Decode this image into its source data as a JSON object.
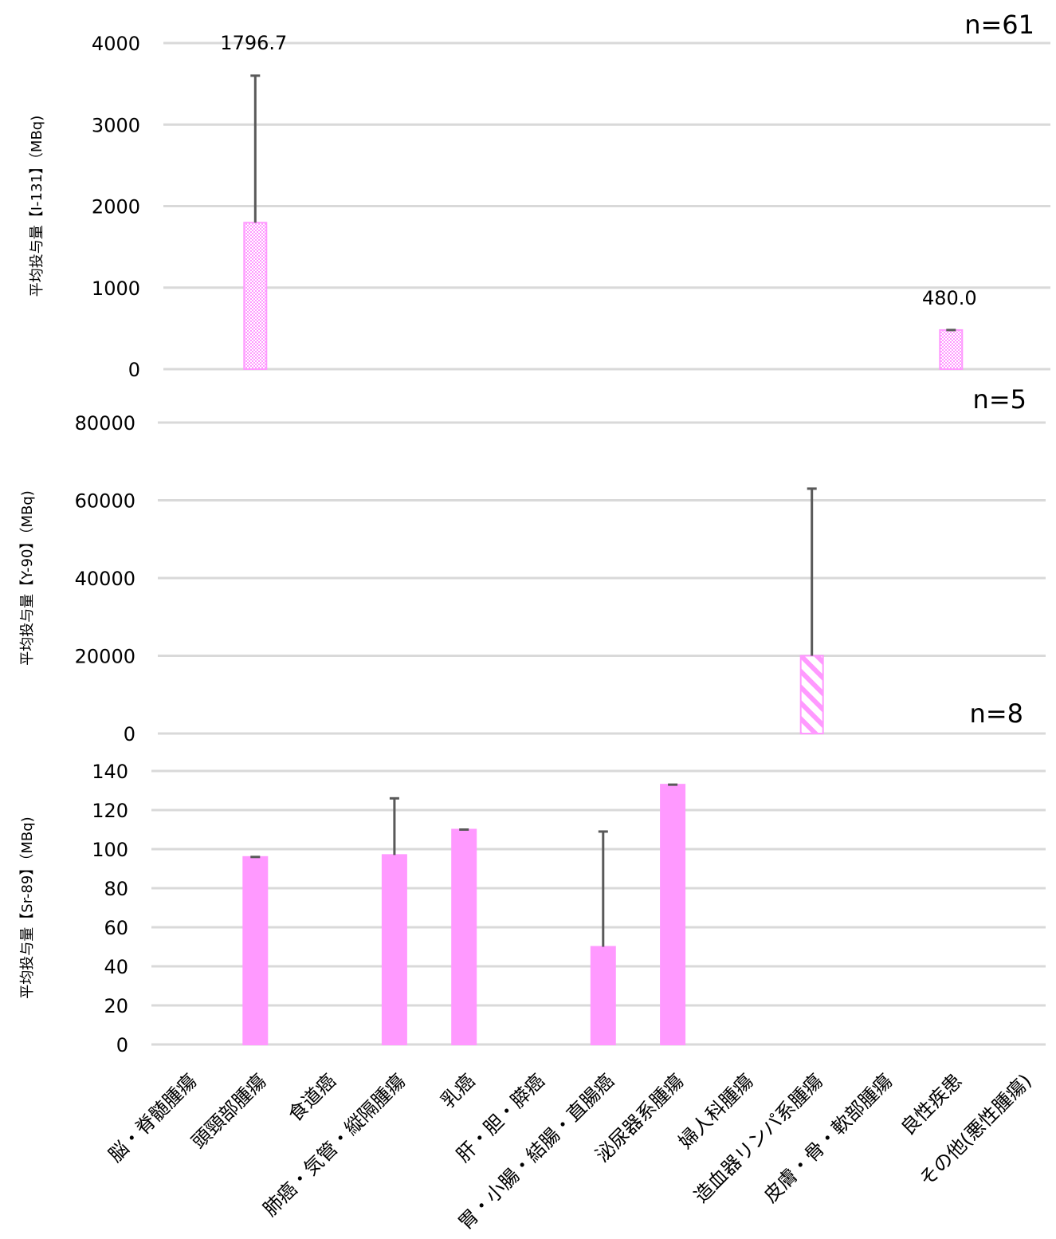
{
  "chart_data": [
    {
      "type": "bar",
      "ylabel": "平均投与量【I-131】（MBq)",
      "n_label": "n=61",
      "ylim": [
        0,
        4000
      ],
      "yticks": [
        0,
        1000,
        2000,
        3000,
        4000
      ],
      "bar_fill": "checkered",
      "bars": [
        {
          "category": "頭頸部腫瘍",
          "value": 1796.7,
          "error_top": 3600,
          "label": "1796.7"
        },
        {
          "category": "良性疾患",
          "value": 480.0,
          "error_top": 480.0,
          "label": "480.0"
        }
      ]
    },
    {
      "type": "bar",
      "ylabel": "平均投与量【Y-90】（MBq)",
      "n_label": "n=5",
      "ylim": [
        0,
        80000
      ],
      "yticks": [
        0,
        20000,
        40000,
        60000,
        80000
      ],
      "bar_fill": "diagonal-hatch",
      "bars": [
        {
          "category": "造血器リンパ系腫瘍",
          "value": 20000,
          "error_top": 63000
        }
      ]
    },
    {
      "type": "bar",
      "ylabel": "平均投与量【Sr-89】（MBq)",
      "n_label": "n=8",
      "ylim": [
        0,
        140
      ],
      "yticks": [
        0,
        20,
        40,
        60,
        80,
        100,
        120,
        140
      ],
      "bar_fill": "solid",
      "bars": [
        {
          "category": "頭頸部腫瘍",
          "value": 96,
          "error_top": 96
        },
        {
          "category": "肺癌・気管・縦隔腫瘍",
          "value": 97,
          "error_top": 126
        },
        {
          "category": "乳癌",
          "value": 110,
          "error_top": 110
        },
        {
          "category": "胃・小腸・結腸・直腸癌",
          "value": 50,
          "error_top": 109
        },
        {
          "category": "泌尿器系腫瘍",
          "value": 133,
          "error_top": 133
        }
      ]
    }
  ],
  "categories": [
    "脳・脊髄腫瘍",
    "頭頸部腫瘍",
    "食道癌",
    "肺癌・気管・縦隔腫瘍",
    "乳癌",
    "肝・胆・膵癌",
    "胃・小腸・結腸・直腸癌",
    "泌尿器系腫瘍",
    "婦人科腫瘍",
    "造血器リンパ系腫瘍",
    "皮膚・骨・軟部腫瘍",
    "良性疾患",
    "その他(悪性腫瘍)"
  ],
  "colors": {
    "bar": "#ff99ff",
    "error_bar": "#595959",
    "grid": "#d9d9d9"
  }
}
